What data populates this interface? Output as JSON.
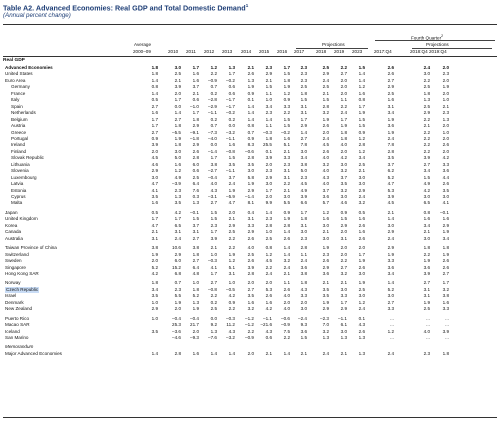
{
  "title": "Table A2. Advanced Economies: Real GDP and Total Domestic Demand",
  "title_note": "1",
  "subtitle": "(Annual percent change)",
  "headers": {
    "average": "Average",
    "average_period": "2000–09",
    "years": [
      "2010",
      "2011",
      "2012",
      "2013",
      "2014",
      "2015",
      "2016",
      "2017"
    ],
    "projections_label": "Projections",
    "projection_years": [
      "2018",
      "2019",
      "2023"
    ],
    "q4_label": "Fourth Quarter",
    "q4_note": "2",
    "q4_projections_label": "Projections",
    "q4_cols": [
      "2017:Q4",
      "2018:Q4",
      "2019:Q4"
    ]
  },
  "section_real_gdp": "Real GDP",
  "rows": [
    {
      "name": "Advanced Economies",
      "style": "bold",
      "v": [
        "1.8",
        "3.0",
        "1.7",
        "1.2",
        "1.3",
        "2.1",
        "2.3",
        "1.7",
        "2.3",
        "2.5",
        "2.2",
        "1.5",
        "2.6",
        "2.4",
        "2.0"
      ]
    },
    {
      "name": "United States",
      "style": "indent",
      "v": [
        "1.8",
        "2.5",
        "1.6",
        "2.2",
        "1.7",
        "2.6",
        "2.9",
        "1.5",
        "2.3",
        "2.9",
        "2.7",
        "1.4",
        "2.6",
        "3.0",
        "2.3"
      ]
    },
    {
      "name": "Euro Area",
      "style": "indent",
      "v": [
        "1.4",
        "2.1",
        "1.6",
        "–0.9",
        "–0.2",
        "1.3",
        "2.1",
        "1.8",
        "2.3",
        "2.4",
        "2.0",
        "1.4",
        "2.7",
        "2.2",
        "2.0"
      ]
    },
    {
      "name": "Germany",
      "style": "indent2",
      "v": [
        "0.8",
        "3.9",
        "3.7",
        "0.7",
        "0.6",
        "1.9",
        "1.5",
        "1.9",
        "2.5",
        "2.5",
        "2.0",
        "1.2",
        "2.9",
        "2.5",
        "1.9"
      ]
    },
    {
      "name": "France",
      "style": "indent2",
      "v": [
        "1.4",
        "2.0",
        "2.1",
        "0.2",
        "0.6",
        "0.9",
        "1.1",
        "1.2",
        "1.8",
        "2.1",
        "2.0",
        "1.6",
        "2.5",
        "1.8",
        "2.0"
      ]
    },
    {
      "name": "Italy",
      "style": "indent2",
      "v": [
        "0.5",
        "1.7",
        "0.6",
        "–2.8",
        "–1.7",
        "0.1",
        "1.0",
        "0.9",
        "1.5",
        "1.5",
        "1.1",
        "0.8",
        "1.6",
        "1.3",
        "1.0"
      ]
    },
    {
      "name": "Spain",
      "style": "indent2",
      "v": [
        "2.7",
        "0.0",
        "–1.0",
        "–2.9",
        "–1.7",
        "1.4",
        "3.4",
        "3.3",
        "3.1",
        "2.8",
        "2.2",
        "1.7",
        "3.1",
        "2.5",
        "2.1"
      ]
    },
    {
      "name": "Netherlands",
      "style": "indent2",
      "v": [
        "1.6",
        "1.4",
        "1.7",
        "–1.1",
        "–0.2",
        "1.4",
        "2.3",
        "2.2",
        "3.1",
        "3.2",
        "2.4",
        "1.9",
        "3.4",
        "2.9",
        "2.3"
      ]
    },
    {
      "name": "Belgium",
      "style": "indent2",
      "v": [
        "1.7",
        "2.7",
        "1.8",
        "0.2",
        "0.2",
        "1.4",
        "1.4",
        "1.5",
        "1.7",
        "1.9",
        "1.7",
        "1.5",
        "1.9",
        "2.2",
        "1.3"
      ]
    },
    {
      "name": "Austria",
      "style": "indent2",
      "v": [
        "1.7",
        "1.8",
        "2.9",
        "0.7",
        "0.0",
        "0.8",
        "1.1",
        "1.5",
        "2.9",
        "2.6",
        "1.9",
        "1.5",
        "3.6",
        "2.1",
        "2.0"
      ]
    },
    {
      "name": "Greece",
      "style": "indent2",
      "v": [
        "2.7",
        "–5.5",
        "–9.1",
        "–7.3",
        "–3.2",
        "0.7",
        "–0.3",
        "–0.2",
        "1.4",
        "2.0",
        "1.8",
        "0.9",
        "1.9",
        "2.2",
        "1.0"
      ]
    },
    {
      "name": "Portugal",
      "style": "indent2",
      "v": [
        "0.9",
        "1.9",
        "–1.8",
        "–4.0",
        "–1.1",
        "0.9",
        "1.8",
        "1.6",
        "2.7",
        "2.4",
        "1.8",
        "1.2",
        "2.4",
        "2.2",
        "2.0"
      ]
    },
    {
      "name": "Ireland",
      "style": "indent2",
      "v": [
        "3.9",
        "1.8",
        "2.9",
        "0.0",
        "1.6",
        "8.3",
        "25.5",
        "5.1",
        "7.8",
        "4.5",
        "4.0",
        "2.8",
        "7.8",
        "2.2",
        "2.6"
      ]
    },
    {
      "name": "Finland",
      "style": "indent2",
      "v": [
        "2.0",
        "3.0",
        "2.6",
        "–1.4",
        "–0.8",
        "–0.6",
        "0.1",
        "2.1",
        "3.0",
        "2.6",
        "2.0",
        "1.2",
        "2.8",
        "2.2",
        "2.0"
      ]
    },
    {
      "name": "Slovak Republic",
      "style": "indent2",
      "v": [
        "4.5",
        "5.0",
        "2.8",
        "1.7",
        "1.5",
        "2.8",
        "3.9",
        "3.3",
        "3.4",
        "4.0",
        "4.2",
        "3.4",
        "3.5",
        "3.9",
        "4.2"
      ]
    },
    {
      "name": "Lithuania",
      "style": "indent2",
      "v": [
        "4.6",
        "1.6",
        "6.0",
        "3.8",
        "3.5",
        "3.5",
        "2.0",
        "2.3",
        "3.8",
        "3.2",
        "3.0",
        "2.5",
        "3.7",
        "2.7",
        "3.3"
      ]
    },
    {
      "name": "Slovenia",
      "style": "indent2",
      "v": [
        "2.9",
        "1.2",
        "0.6",
        "–2.7",
        "–1.1",
        "3.0",
        "2.3",
        "3.1",
        "5.0",
        "4.0",
        "3.2",
        "2.1",
        "6.2",
        "3.4",
        "3.6"
      ]
    },
    {
      "name": "Luxembourg",
      "style": "indent2",
      "v": [
        "3.0",
        "4.9",
        "2.5",
        "–0.4",
        "3.7",
        "5.8",
        "2.9",
        "3.1",
        "2.3",
        "4.3",
        "3.7",
        "3.0",
        "5.2",
        "1.5",
        "4.4"
      ]
    },
    {
      "name": "Latvia",
      "style": "indent2",
      "v": [
        "4.7",
        "–3.9",
        "6.4",
        "4.0",
        "2.4",
        "1.9",
        "3.0",
        "2.2",
        "4.5",
        "4.0",
        "3.5",
        "3.0",
        "4.7",
        "4.9",
        "2.6"
      ]
    },
    {
      "name": "Estonia",
      "style": "indent2",
      "v": [
        "4.1",
        "2.3",
        "7.6",
        "4.3",
        "1.9",
        "2.9",
        "1.7",
        "2.1",
        "4.9",
        "3.7",
        "3.2",
        "2.9",
        "5.3",
        "4.2",
        "3.5"
      ]
    },
    {
      "name": "Cyprus",
      "style": "indent2",
      "v": [
        "3.5",
        "1.3",
        "0.3",
        "–3.1",
        "–5.9",
        "–1.4",
        "2.0",
        "3.0",
        "3.9",
        "3.6",
        "3.0",
        "2.4",
        "3.9",
        "3.0",
        "3.0"
      ]
    },
    {
      "name": "Malta",
      "style": "indent2",
      "v": [
        "1.6",
        "3.5",
        "1.3",
        "2.7",
        "4.7",
        "8.1",
        "9.9",
        "5.5",
        "6.6",
        "5.7",
        "4.6",
        "3.2",
        "4.5",
        "6.5",
        "4.1"
      ]
    },
    {
      "name": "Japan",
      "style": "indent",
      "gap": true,
      "v": [
        "0.5",
        "4.2",
        "–0.1",
        "1.5",
        "2.0",
        "0.4",
        "1.4",
        "0.9",
        "1.7",
        "1.2",
        "0.9",
        "0.5",
        "2.1",
        "0.8",
        "–0.1"
      ]
    },
    {
      "name": "United Kingdom",
      "style": "indent",
      "v": [
        "1.7",
        "1.7",
        "1.5",
        "1.5",
        "2.1",
        "3.1",
        "2.3",
        "1.9",
        "1.8",
        "1.6",
        "1.5",
        "1.6",
        "1.4",
        "1.6",
        "1.6"
      ]
    },
    {
      "name": "Korea",
      "style": "indent",
      "v": [
        "4.7",
        "6.5",
        "3.7",
        "2.3",
        "2.9",
        "3.3",
        "2.8",
        "2.8",
        "3.1",
        "3.0",
        "2.9",
        "2.6",
        "3.0",
        "3.4",
        "2.9"
      ]
    },
    {
      "name": "Canada",
      "style": "indent",
      "v": [
        "2.1",
        "3.1",
        "3.1",
        "1.7",
        "2.5",
        "2.9",
        "1.0",
        "1.4",
        "3.0",
        "2.1",
        "2.0",
        "1.6",
        "2.9",
        "2.1",
        "1.9"
      ]
    },
    {
      "name": "Australia",
      "style": "indent",
      "v": [
        "3.1",
        "2.4",
        "2.7",
        "3.9",
        "2.2",
        "2.6",
        "2.5",
        "2.6",
        "2.3",
        "3.0",
        "3.1",
        "2.6",
        "2.4",
        "3.0",
        "3.4"
      ]
    },
    {
      "name": "Taiwan Province of China",
      "style": "indent",
      "gap": true,
      "v": [
        "3.8",
        "10.6",
        "3.8",
        "2.1",
        "2.2",
        "4.0",
        "0.8",
        "1.4",
        "2.8",
        "1.9",
        "2.0",
        "2.0",
        "2.9",
        "1.8",
        "1.8"
      ]
    },
    {
      "name": "Switzerland",
      "style": "indent",
      "v": [
        "1.9",
        "2.9",
        "1.8",
        "1.0",
        "1.9",
        "2.5",
        "1.2",
        "1.4",
        "1.1",
        "2.3",
        "2.0",
        "1.7",
        "1.9",
        "2.2",
        "1.9"
      ]
    },
    {
      "name": "Sweden",
      "style": "indent",
      "v": [
        "2.0",
        "6.0",
        "2.7",
        "–0.3",
        "1.2",
        "2.6",
        "4.5",
        "3.2",
        "2.4",
        "2.6",
        "2.2",
        "1.9",
        "3.3",
        "1.9",
        "2.6"
      ]
    },
    {
      "name": "Singapore",
      "style": "indent",
      "v": [
        "5.2",
        "15.2",
        "6.4",
        "4.1",
        "5.1",
        "3.9",
        "2.2",
        "2.4",
        "3.6",
        "2.9",
        "2.7",
        "2.6",
        "3.6",
        "3.6",
        "2.6"
      ]
    },
    {
      "name": "Hong Kong SAR",
      "style": "indent",
      "v": [
        "4.2",
        "6.8",
        "4.8",
        "1.7",
        "3.1",
        "2.8",
        "2.4",
        "2.1",
        "3.8",
        "3.6",
        "3.2",
        "3.0",
        "3.4",
        "3.9",
        "2.7"
      ]
    },
    {
      "name": "Norway",
      "style": "indent",
      "gap": true,
      "v": [
        "1.8",
        "0.7",
        "1.0",
        "2.7",
        "1.0",
        "2.0",
        "2.0",
        "1.1",
        "1.8",
        "2.1",
        "2.1",
        "1.9",
        "1.4",
        "2.7",
        "1.7"
      ]
    },
    {
      "name": "Czech Republic",
      "style": "indent highlight",
      "v": [
        "3.4",
        "2.3",
        "1.8",
        "–0.8",
        "–0.5",
        "2.7",
        "5.3",
        "2.6",
        "4.3",
        "3.5",
        "3.0",
        "2.5",
        "5.2",
        "3.1",
        "3.2"
      ]
    },
    {
      "name": "Israel",
      "style": "indent",
      "v": [
        "3.5",
        "5.5",
        "5.2",
        "2.2",
        "4.2",
        "3.5",
        "2.6",
        "4.0",
        "3.3",
        "3.5",
        "3.3",
        "3.0",
        "3.0",
        "3.1",
        "3.8"
      ]
    },
    {
      "name": "Denmark",
      "style": "indent",
      "v": [
        "1.0",
        "1.9",
        "1.3",
        "0.2",
        "0.9",
        "1.6",
        "1.6",
        "2.0",
        "2.0",
        "1.9",
        "1.7",
        "1.2",
        "2.7",
        "1.9",
        "1.6"
      ]
    },
    {
      "name": "New Zealand",
      "style": "indent",
      "v": [
        "2.9",
        "2.0",
        "1.9",
        "2.5",
        "2.2",
        "3.2",
        "4.2",
        "4.0",
        "3.0",
        "2.9",
        "2.9",
        "2.4",
        "3.3",
        "2.5",
        "3.3"
      ]
    },
    {
      "name": "Puerto Rico",
      "style": "indent",
      "gap": true,
      "v": [
        "1.0",
        "–0.4",
        "–0.4",
        "0.0",
        "–0.3",
        "–1.2",
        "–1.1",
        "–0.6",
        "–2.4",
        "–2.3",
        "–1.1",
        "0.1",
        "...",
        "...",
        "..."
      ]
    },
    {
      "name": "Macao SAR",
      "style": "indent",
      "v": [
        "",
        "25.3",
        "21.7",
        "9.2",
        "11.2",
        "–1.2",
        "–21.6",
        "–0.9",
        "9.3",
        "7.0",
        "6.1",
        "4.3",
        "...",
        "...",
        "..."
      ]
    },
    {
      "name": "Iceland",
      "style": "indent",
      "v": [
        "3.5",
        "–3.6",
        "2.0",
        "1.3",
        "4.3",
        "2.2",
        "4.3",
        "7.5",
        "3.6",
        "3.2",
        "3.0",
        "2.6",
        "1.2",
        "4.0",
        "3.9"
      ]
    },
    {
      "name": "San Marino",
      "style": "indent",
      "v": [
        "",
        "–4.6",
        "–9.3",
        "–7.6",
        "–3.2",
        "–0.9",
        "0.6",
        "2.2",
        "1.5",
        "1.3",
        "1.3",
        "1.3",
        "...",
        "...",
        "..."
      ]
    }
  ],
  "memorandum_label": "Memorandum",
  "memo_rows": [
    {
      "name": "Major Advanced Economies",
      "style": "indent",
      "v": [
        "1.4",
        "2.8",
        "1.6",
        "1.4",
        "1.4",
        "2.0",
        "2.1",
        "1.4",
        "2.1",
        "2.4",
        "2.1",
        "1.3",
        "2.4",
        "2.3",
        "1.8"
      ]
    }
  ]
}
